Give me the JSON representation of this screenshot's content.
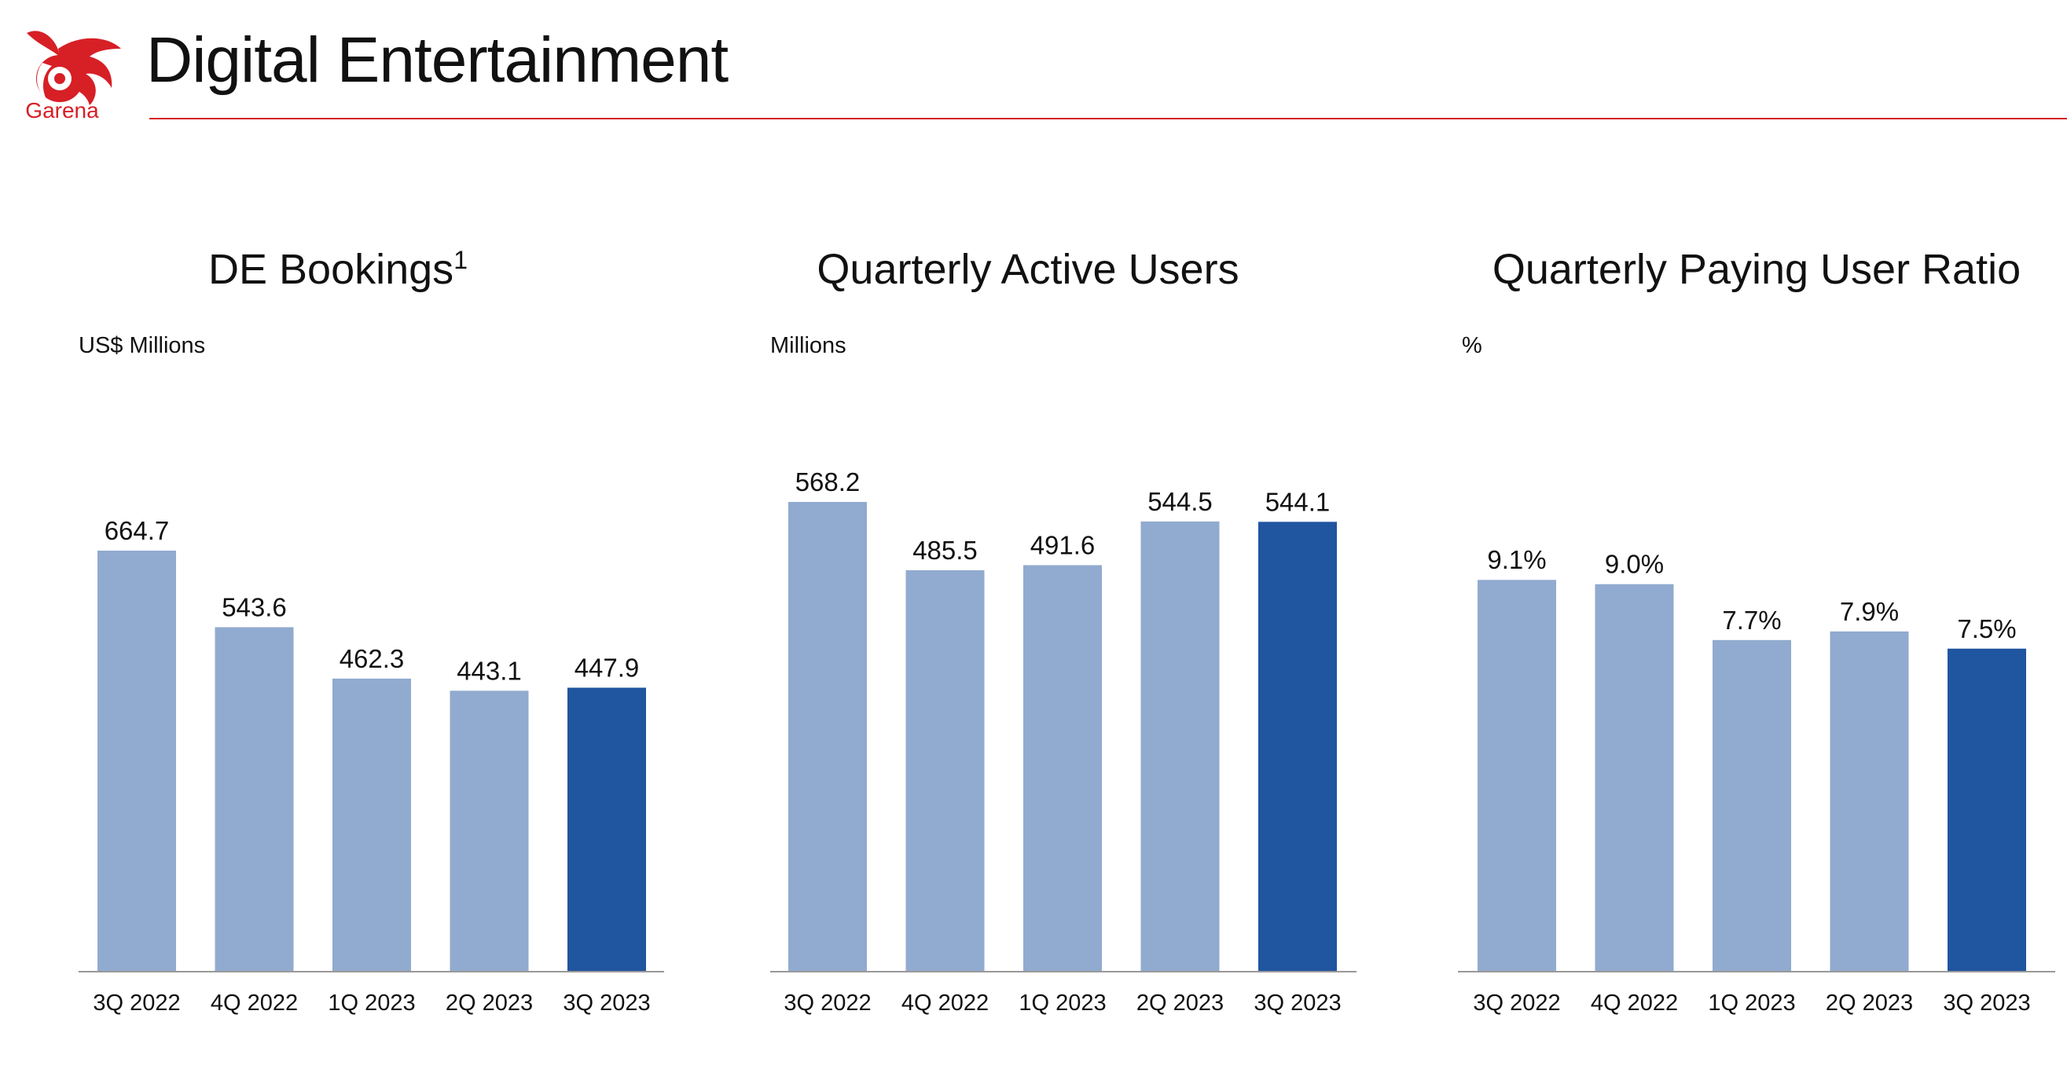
{
  "header": {
    "title": "Digital Entertainment",
    "logo_text": "Garena",
    "logo_icon": "garena-dragon-logo-icon"
  },
  "colors": {
    "brand_red": "#d71f26",
    "bar_light": "#91aacf",
    "bar_highlight": "#20559f",
    "axis": "#999999"
  },
  "chart_data": [
    {
      "type": "bar",
      "title": "DE Bookings",
      "title_superscript": "1",
      "unit_label": "US$ Millions",
      "categories": [
        "3Q 2022",
        "4Q 2022",
        "1Q 2023",
        "2Q 2023",
        "3Q 2023"
      ],
      "values": [
        664.7,
        543.6,
        462.3,
        443.1,
        447.9
      ],
      "value_labels": [
        "664.7",
        "543.6",
        "462.3",
        "443.1",
        "447.9"
      ],
      "highlight_index": 4,
      "ylim": [
        0,
        700
      ],
      "grid": false
    },
    {
      "type": "bar",
      "title": "Quarterly Active Users",
      "unit_label": "Millions",
      "categories": [
        "3Q 2022",
        "4Q 2022",
        "1Q 2023",
        "2Q 2023",
        "3Q 2023"
      ],
      "values": [
        568.2,
        485.5,
        491.6,
        544.5,
        544.1
      ],
      "value_labels": [
        "568.2",
        "485.5",
        "491.6",
        "544.5",
        "544.1"
      ],
      "highlight_index": 4,
      "ylim": [
        0,
        600
      ],
      "grid": false
    },
    {
      "type": "bar",
      "title": "Quarterly Paying User Ratio",
      "unit_label": "%",
      "categories": [
        "3Q 2022",
        "4Q 2022",
        "1Q 2023",
        "2Q 2023",
        "3Q 2023"
      ],
      "values": [
        9.1,
        9.0,
        7.7,
        7.9,
        7.5
      ],
      "value_labels": [
        "9.1%",
        "9.0%",
        "7.7%",
        "7.9%",
        "7.5%"
      ],
      "highlight_index": 4,
      "ylim": [
        0,
        10
      ],
      "grid": false
    }
  ]
}
